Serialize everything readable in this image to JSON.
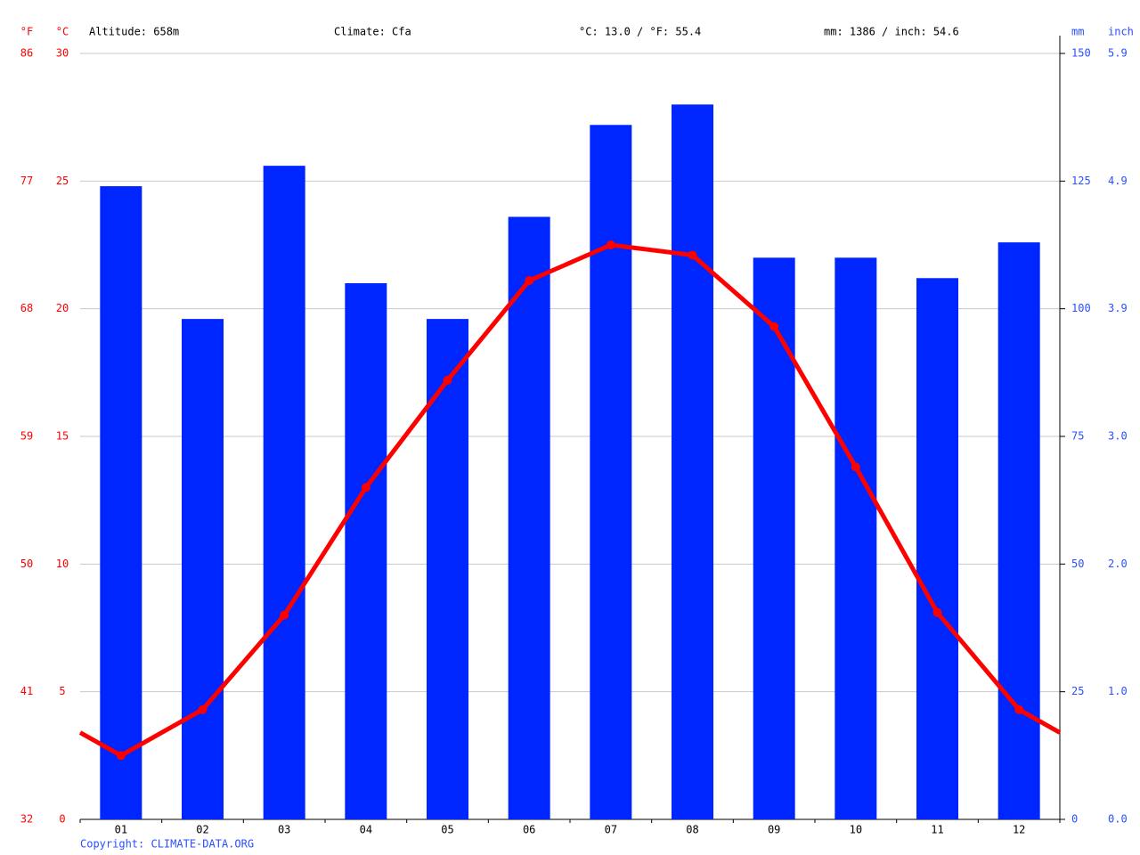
{
  "chart_data": {
    "type": "bar",
    "header": {
      "altitude": "Altitude: 658m",
      "climate": "Climate: Cfa",
      "temperature": "°C: 13.0 / °F: 55.4",
      "precipitation": "mm: 1386 / inch: 54.6"
    },
    "copyright": "Copyright: CLIMATE-DATA.ORG",
    "categories": [
      "01",
      "02",
      "03",
      "04",
      "05",
      "06",
      "07",
      "08",
      "09",
      "10",
      "11",
      "12"
    ],
    "series": [
      {
        "type": "bar",
        "axis": "y2",
        "color": "#0026ff",
        "values": [
          124,
          98,
          128,
          105,
          98,
          118,
          136,
          140,
          110,
          110,
          106,
          113
        ]
      },
      {
        "type": "line",
        "axis": "y",
        "color": "#ff0000",
        "values": [
          2.5,
          4.3,
          8.0,
          13.0,
          17.2,
          21.1,
          22.5,
          22.1,
          19.3,
          13.8,
          8.1,
          4.3
        ]
      }
    ],
    "ylabel": "°C",
    "ylim": [
      0,
      30
    ],
    "yticks": [
      0,
      5,
      10,
      15,
      20,
      25,
      30
    ],
    "fahrenheit_axis": {
      "label": "°F",
      "lim": [
        32,
        86
      ],
      "ticks": [
        32,
        41,
        50,
        59,
        68,
        77,
        86
      ]
    },
    "y2label": "mm",
    "y2lim": [
      0,
      150
    ],
    "y2ticks": [
      0,
      25,
      50,
      75,
      100,
      125,
      150
    ],
    "inch_axis": {
      "label": "inch",
      "lim": [
        0,
        5.906
      ],
      "ticks": [
        {
          "value": 0,
          "label": "0.0"
        },
        {
          "value": 0.984,
          "label": "1.0"
        },
        {
          "value": 1.969,
          "label": "2.0"
        },
        {
          "value": 2.953,
          "label": "3.0"
        },
        {
          "value": 3.937,
          "label": "3.9"
        },
        {
          "value": 4.921,
          "label": "4.9"
        },
        {
          "value": 5.906,
          "label": "5.9"
        }
      ]
    },
    "grid": true
  }
}
